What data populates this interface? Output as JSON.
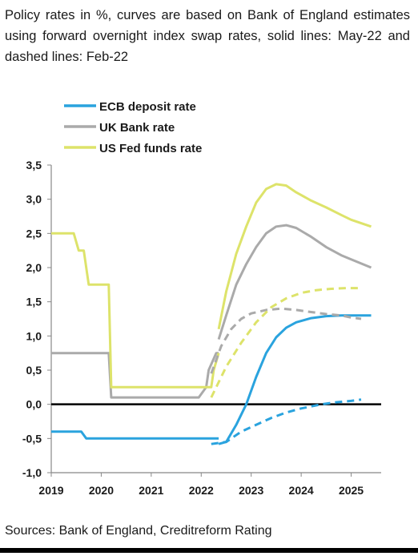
{
  "caption": "Policy rates in %, curves are based on Bank of England estimates using forward overnight index swap rates, solid lines: May-22 and dashed lines: Feb-22",
  "source": "Sources: Bank of England, Creditreform Rating",
  "chart_data": {
    "type": "line",
    "title": "",
    "xlabel": "",
    "ylabel": "",
    "xlim": [
      2019.0,
      2025.6
    ],
    "ylim": [
      -1.0,
      3.5
    ],
    "x_ticks": [
      2019,
      2020,
      2021,
      2022,
      2023,
      2024,
      2025
    ],
    "x_tick_labels": [
      "2019",
      "2020",
      "2021",
      "2022",
      "2023",
      "2024",
      "2025"
    ],
    "y_ticks": [
      -1.0,
      -0.5,
      0.0,
      0.5,
      1.0,
      1.5,
      2.0,
      2.5,
      3.0,
      3.5
    ],
    "y_tick_labels": [
      "-1,0",
      "-0,5",
      "0,0",
      "0,5",
      "1,0",
      "1,5",
      "2,0",
      "2,5",
      "3,0",
      "3,5"
    ],
    "legend_position": "top-left",
    "zero_line": true,
    "series": [
      {
        "name": "ECB deposit rate",
        "style": "solid",
        "color": "#2aa3de",
        "points": [
          [
            2019.0,
            -0.4
          ],
          [
            2019.6,
            -0.4
          ],
          [
            2019.7,
            -0.5
          ],
          [
            2022.35,
            -0.5
          ]
        ]
      },
      {
        "name": "UK Bank rate",
        "style": "solid",
        "color": "#aaaaaa",
        "points": [
          [
            2019.0,
            0.75
          ],
          [
            2020.15,
            0.75
          ],
          [
            2020.2,
            0.1
          ],
          [
            2021.95,
            0.1
          ],
          [
            2022.1,
            0.25
          ],
          [
            2022.15,
            0.5
          ],
          [
            2022.3,
            0.75
          ],
          [
            2022.35,
            0.75
          ]
        ]
      },
      {
        "name": "US Fed funds rate",
        "style": "solid",
        "color": "#dde36a",
        "points": [
          [
            2019.0,
            2.5
          ],
          [
            2019.45,
            2.5
          ],
          [
            2019.55,
            2.25
          ],
          [
            2019.65,
            2.25
          ],
          [
            2019.75,
            1.75
          ],
          [
            2020.15,
            1.75
          ],
          [
            2020.2,
            0.25
          ],
          [
            2022.2,
            0.25
          ],
          [
            2022.25,
            0.5
          ],
          [
            2022.35,
            0.75
          ]
        ]
      },
      {
        "name": "ECB deposit rate (May-22 forward)",
        "style": "solid",
        "color": "#2aa3de",
        "points": [
          [
            2022.35,
            -0.58
          ],
          [
            2022.5,
            -0.55
          ],
          [
            2022.7,
            -0.3
          ],
          [
            2022.9,
            0.0
          ],
          [
            2023.1,
            0.4
          ],
          [
            2023.3,
            0.75
          ],
          [
            2023.5,
            0.98
          ],
          [
            2023.7,
            1.12
          ],
          [
            2023.9,
            1.2
          ],
          [
            2024.2,
            1.26
          ],
          [
            2024.5,
            1.29
          ],
          [
            2024.8,
            1.3
          ],
          [
            2025.0,
            1.3
          ],
          [
            2025.4,
            1.3
          ]
        ]
      },
      {
        "name": "UK Bank rate (May-22 forward)",
        "style": "solid",
        "color": "#aaaaaa",
        "points": [
          [
            2022.35,
            0.95
          ],
          [
            2022.5,
            1.3
          ],
          [
            2022.7,
            1.75
          ],
          [
            2022.9,
            2.05
          ],
          [
            2023.1,
            2.3
          ],
          [
            2023.3,
            2.5
          ],
          [
            2023.5,
            2.6
          ],
          [
            2023.7,
            2.62
          ],
          [
            2023.9,
            2.58
          ],
          [
            2024.2,
            2.45
          ],
          [
            2024.5,
            2.3
          ],
          [
            2024.8,
            2.18
          ],
          [
            2025.0,
            2.12
          ],
          [
            2025.4,
            2.0
          ]
        ]
      },
      {
        "name": "US Fed funds rate (May-22 forward)",
        "style": "solid",
        "color": "#dde36a",
        "points": [
          [
            2022.35,
            1.1
          ],
          [
            2022.5,
            1.65
          ],
          [
            2022.7,
            2.2
          ],
          [
            2022.9,
            2.6
          ],
          [
            2023.1,
            2.95
          ],
          [
            2023.3,
            3.15
          ],
          [
            2023.5,
            3.22
          ],
          [
            2023.7,
            3.2
          ],
          [
            2023.9,
            3.1
          ],
          [
            2024.2,
            2.98
          ],
          [
            2024.5,
            2.88
          ],
          [
            2024.8,
            2.77
          ],
          [
            2025.0,
            2.7
          ],
          [
            2025.4,
            2.6
          ]
        ]
      },
      {
        "name": "ECB deposit rate (Feb-22 forward)",
        "style": "dashed",
        "color": "#2aa3de",
        "points": [
          [
            2022.2,
            -0.58
          ],
          [
            2022.5,
            -0.55
          ],
          [
            2022.8,
            -0.4
          ],
          [
            2023.1,
            -0.3
          ],
          [
            2023.4,
            -0.2
          ],
          [
            2023.7,
            -0.12
          ],
          [
            2024.0,
            -0.06
          ],
          [
            2024.4,
            0.0
          ],
          [
            2024.7,
            0.03
          ],
          [
            2025.0,
            0.05
          ],
          [
            2025.2,
            0.07
          ]
        ]
      },
      {
        "name": "UK Bank rate (Feb-22 forward)",
        "style": "dashed",
        "color": "#aaaaaa",
        "points": [
          [
            2022.2,
            0.45
          ],
          [
            2022.4,
            0.85
          ],
          [
            2022.6,
            1.1
          ],
          [
            2022.8,
            1.25
          ],
          [
            2023.0,
            1.33
          ],
          [
            2023.3,
            1.38
          ],
          [
            2023.6,
            1.4
          ],
          [
            2023.9,
            1.38
          ],
          [
            2024.2,
            1.35
          ],
          [
            2024.5,
            1.32
          ],
          [
            2024.8,
            1.3
          ],
          [
            2025.0,
            1.27
          ],
          [
            2025.2,
            1.25
          ]
        ]
      },
      {
        "name": "US Fed funds rate (Feb-22 forward)",
        "style": "dashed",
        "color": "#dde36a",
        "points": [
          [
            2022.2,
            0.1
          ],
          [
            2022.5,
            0.55
          ],
          [
            2022.8,
            0.9
          ],
          [
            2023.1,
            1.2
          ],
          [
            2023.4,
            1.42
          ],
          [
            2023.7,
            1.55
          ],
          [
            2024.0,
            1.63
          ],
          [
            2024.3,
            1.67
          ],
          [
            2024.6,
            1.69
          ],
          [
            2024.9,
            1.7
          ],
          [
            2025.2,
            1.7
          ]
        ]
      }
    ],
    "legend": [
      {
        "label": "ECB deposit rate",
        "color": "#2aa3de"
      },
      {
        "label": "UK Bank rate",
        "color": "#aaaaaa"
      },
      {
        "label": "US Fed funds rate",
        "color": "#dde36a"
      }
    ]
  }
}
